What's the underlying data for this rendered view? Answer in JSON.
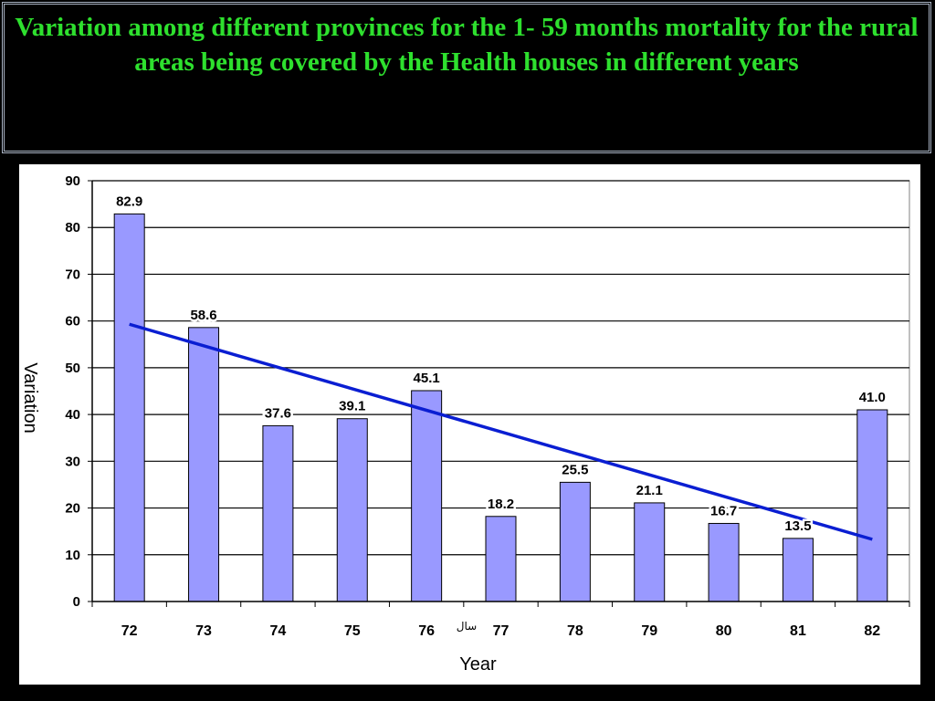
{
  "slide": {
    "title": "Variation among different provinces for the 1- 59 months mortality for the rural areas being covered by the Health houses in different years"
  },
  "chart_data": {
    "type": "bar",
    "title": "",
    "xlabel": "Year",
    "ylabel": "Variation",
    "annotation": "سال",
    "categories": [
      "72",
      "73",
      "74",
      "75",
      "76",
      "77",
      "78",
      "79",
      "80",
      "81",
      "82"
    ],
    "values": [
      82.9,
      58.6,
      37.6,
      39.1,
      45.1,
      18.2,
      25.5,
      21.1,
      16.7,
      13.5,
      41.0
    ],
    "data_labels": [
      "82.9",
      "58.6",
      "37.6",
      "39.1",
      "45.1",
      "18.2",
      "25.5",
      "21.1",
      "16.7",
      "13.5",
      "41.0"
    ],
    "y_ticks": [
      "0",
      "10",
      "20",
      "30",
      "40",
      "50",
      "60",
      "70",
      "80",
      "90"
    ],
    "ylim": [
      0,
      90
    ],
    "grid": true,
    "trendline": {
      "type": "linear",
      "start_value": 59.3,
      "end_value": 13.3
    },
    "colors": {
      "bar": "#9999ff",
      "bar_edge": "#000000",
      "trendline": "#0a1ed2",
      "grid": "#000000"
    }
  }
}
